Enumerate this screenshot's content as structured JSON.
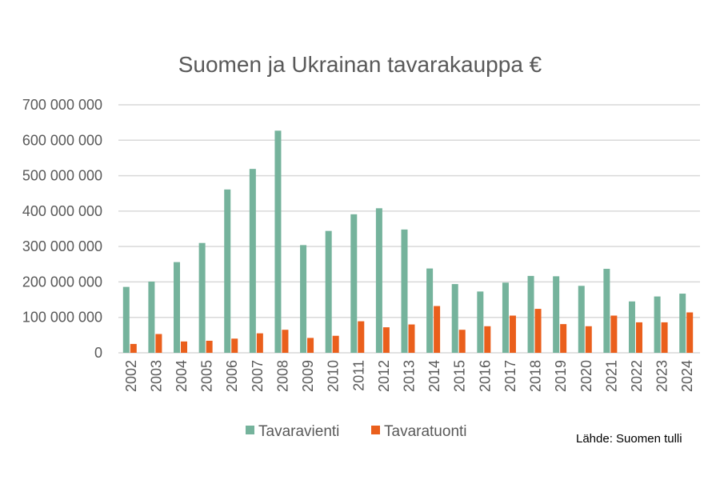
{
  "chart_data": {
    "type": "bar",
    "title": "Suomen ja Ukrainan tavarakauppa €",
    "xlabel": "",
    "ylabel": "",
    "ylim": [
      0,
      700000000
    ],
    "yticks": [
      0,
      100000000,
      200000000,
      300000000,
      400000000,
      500000000,
      600000000,
      700000000
    ],
    "ytick_labels": [
      "0",
      "100 000 000",
      "200 000 000",
      "300 000 000",
      "400 000 000",
      "500 000 000",
      "600 000 000",
      "700 000 000"
    ],
    "grid": true,
    "legend_position": "bottom",
    "categories": [
      "2002",
      "2003",
      "2004",
      "2005",
      "2006",
      "2007",
      "2008",
      "2009",
      "2010",
      "2011",
      "2012",
      "2013",
      "2014",
      "2015",
      "2016",
      "2017",
      "2018",
      "2019",
      "2020",
      "2021",
      "2022",
      "2023",
      "2024"
    ],
    "series": [
      {
        "name": "Tavaravienti",
        "color": "#75b39c",
        "values": [
          186000000,
          201000000,
          256000000,
          310000000,
          461000000,
          519000000,
          627000000,
          304000000,
          344000000,
          391000000,
          408000000,
          348000000,
          238000000,
          194000000,
          173000000,
          198000000,
          217000000,
          216000000,
          189000000,
          237000000,
          145000000,
          159000000,
          167000000
        ]
      },
      {
        "name": "Tavaratuonti",
        "color": "#ea5f1c",
        "values": [
          25000000,
          53000000,
          32000000,
          34000000,
          40000000,
          55000000,
          65000000,
          42000000,
          48000000,
          89000000,
          72000000,
          80000000,
          132000000,
          65000000,
          75000000,
          105000000,
          124000000,
          81000000,
          75000000,
          105000000,
          86000000,
          86000000,
          114000000
        ]
      }
    ],
    "source": "Lähde: Suomen tulli"
  }
}
